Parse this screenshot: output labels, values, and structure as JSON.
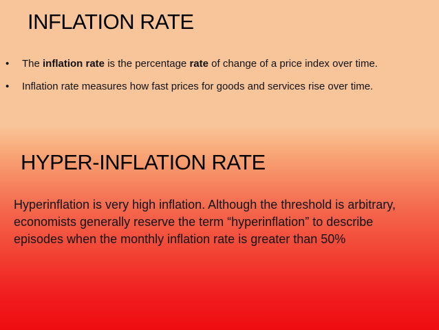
{
  "slide": {
    "title": "INFLATION RATE",
    "bullets": [
      {
        "marker": "•",
        "parts": [
          "The ",
          "inflation rate",
          " is the percentage ",
          "rate",
          " of change of a price index over time."
        ]
      },
      {
        "marker": "•",
        "text": "Inflation rate measures how fast prices for goods and services rise over time."
      }
    ],
    "subtitle": "HYPER-INFLATION RATE",
    "paragraph": "Hyperinflation is very high inflation. Although the threshold is arbitrary, economists generally reserve the term “hyperinflation” to describe episodes when the monthly inflation rate is greater than 50%"
  },
  "colors": {
    "top_background": "#f8c59a",
    "bottom_background": "#ee0d10",
    "text": "#000000"
  }
}
